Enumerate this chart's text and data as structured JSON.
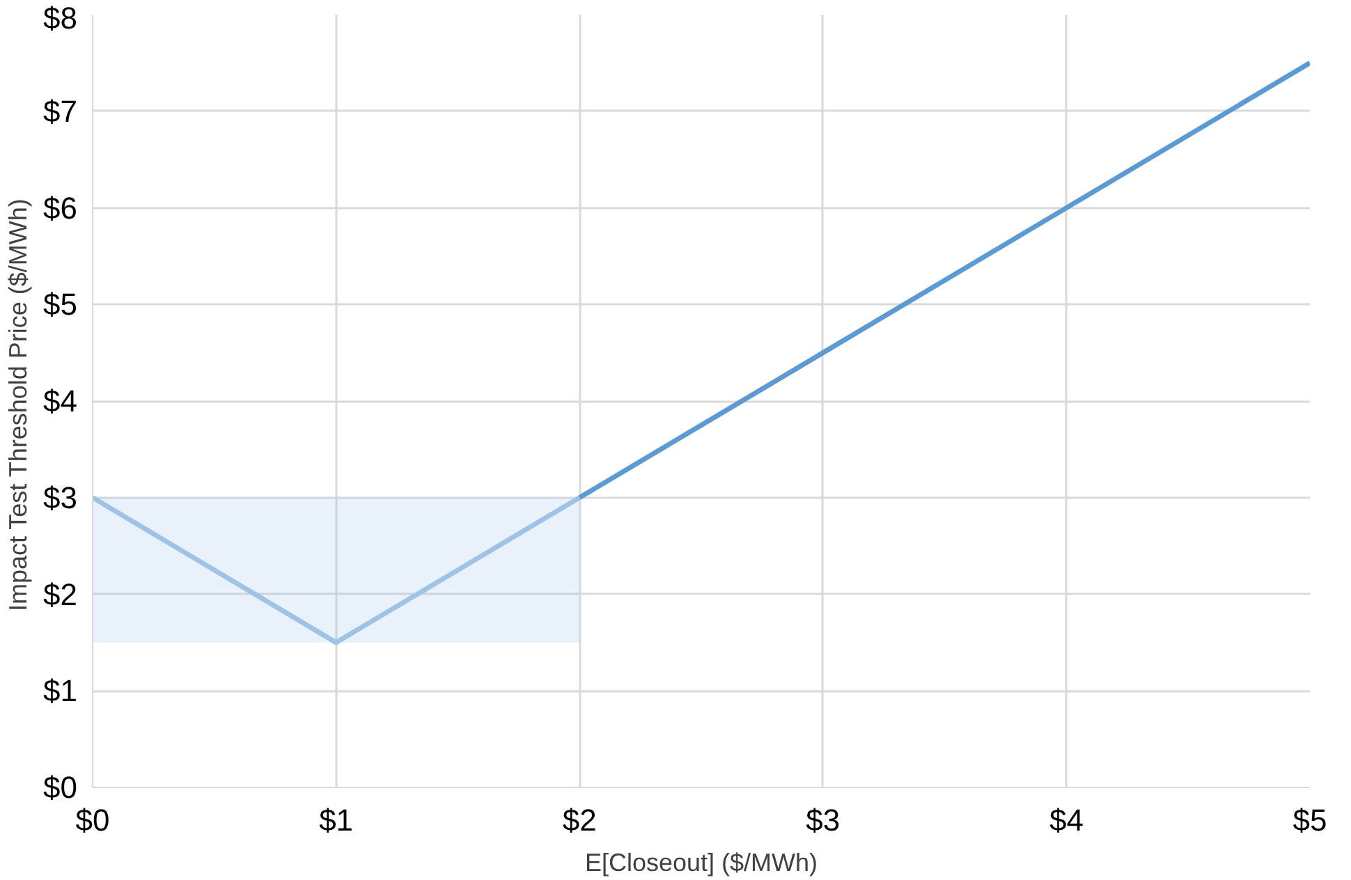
{
  "chart_data": {
    "type": "line",
    "xlabel": "E[Closeout] ($/MWh)",
    "ylabel": "Impact Test Threshold Price  ($/MWh)",
    "xlim": [
      0,
      5
    ],
    "ylim": [
      0,
      8
    ],
    "xticks": [
      {
        "value": 0,
        "label": "$0"
      },
      {
        "value": 1,
        "label": "$1"
      },
      {
        "value": 2,
        "label": "$2"
      },
      {
        "value": 3,
        "label": "$3"
      },
      {
        "value": 4,
        "label": "$4"
      },
      {
        "value": 5,
        "label": "$5"
      }
    ],
    "yticks": [
      {
        "value": 0,
        "label": "$0"
      },
      {
        "value": 1,
        "label": "$1"
      },
      {
        "value": 2,
        "label": "$2"
      },
      {
        "value": 3,
        "label": "$3"
      },
      {
        "value": 4,
        "label": "$4"
      },
      {
        "value": 5,
        "label": "$5"
      },
      {
        "value": 6,
        "label": "$6"
      },
      {
        "value": 7,
        "label": "$7"
      },
      {
        "value": 8,
        "label": "$8"
      }
    ],
    "grid": true,
    "series": [
      {
        "color": "#9dc3e6",
        "x": [
          0,
          1,
          2
        ],
        "values": [
          3,
          1.5,
          3
        ],
        "lower": [
          1.5,
          1.5,
          1.5
        ],
        "upper": [
          3,
          3,
          3
        ]
      },
      {
        "color": "#5b9bd5",
        "x": [
          2,
          3,
          4,
          5
        ],
        "values": [
          3,
          4.5,
          6,
          7.5
        ]
      }
    ]
  }
}
